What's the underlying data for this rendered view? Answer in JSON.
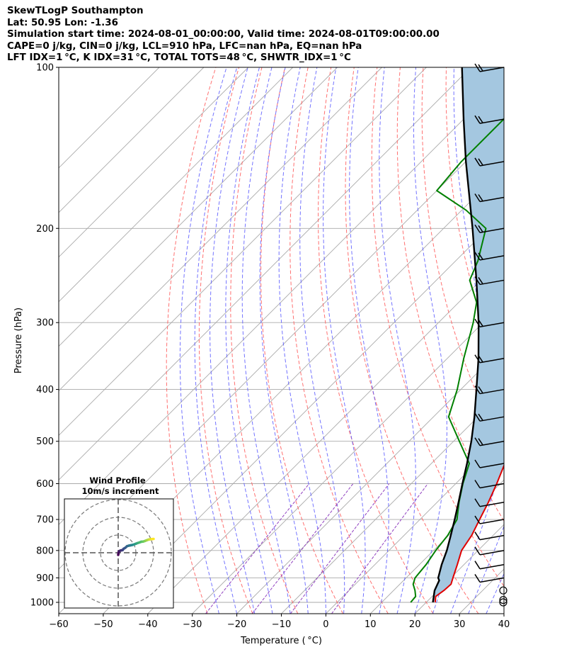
{
  "header": {
    "line1": "SkewTLogP Southampton",
    "line2": "Lat: 50.95   Lon: -1.36",
    "line3": "Simulation start time: 2024-08-01_00:00:00, Valid time: 2024-08-01T09:00:00.00",
    "line4": "CAPE=0 j/kg, CIN=0 j/kg, LCL=910 hPa, LFC=nan hPa, EQ=nan hPa",
    "line5": "LFT IDX=1 °C, K IDX=31 °C, TOTAL TOTS=48 °C, SHWTR_IDX=1 °C"
  },
  "chart_data": {
    "type": "line",
    "subtype": "skew-T log-P diagram",
    "xlabel": "Temperature ( °C)",
    "ylabel": "Pressure (hPa)",
    "xlim": [
      -60,
      40
    ],
    "ylim": [
      1050,
      100
    ],
    "yscale": "log",
    "xticks": [
      "−60",
      "−50",
      "−40",
      "−30",
      "−20",
      "−10",
      "0",
      "10",
      "20",
      "30",
      "40"
    ],
    "yticks": [
      "100",
      "200",
      "300",
      "400",
      "500",
      "600",
      "700",
      "800",
      "900",
      "1000"
    ],
    "ytick_values": [
      100,
      200,
      300,
      400,
      500,
      600,
      700,
      800,
      900,
      1000
    ],
    "grid": true,
    "colors": {
      "temperature": "#e00000",
      "dewpoint": "#008000",
      "parcel": "#000000",
      "fill": "#a4c7e0",
      "dry_adiabat": "#ff6060",
      "moist_adiabat": "#5a5aff",
      "mixing_ratio": "#9040c0",
      "isotherm": "#aaaaaa"
    },
    "series": [
      {
        "name": "Temperature",
        "points": [
          [
            1000,
            22
          ],
          [
            975,
            20.8
          ],
          [
            950,
            21.3
          ],
          [
            925,
            21.5
          ],
          [
            900,
            20.5
          ],
          [
            850,
            18.5
          ],
          [
            800,
            16.3
          ],
          [
            750,
            15.2
          ],
          [
            700,
            13.4
          ],
          [
            650,
            11.5
          ],
          [
            600,
            9.2
          ],
          [
            550,
            6.5
          ],
          [
            500,
            3.5
          ],
          [
            450,
            0.5
          ],
          [
            400,
            -3.5
          ],
          [
            350,
            -9
          ],
          [
            300,
            -14.8
          ],
          [
            250,
            -22.8
          ],
          [
            230,
            -24
          ],
          [
            200,
            -27.5
          ],
          [
            180,
            -29
          ],
          [
            150,
            -33.5
          ],
          [
            125,
            -38
          ],
          [
            100,
            -45
          ]
        ]
      },
      {
        "name": "Dewpoint",
        "points": [
          [
            1000,
            16.5
          ],
          [
            975,
            16.3
          ],
          [
            950,
            14.8
          ],
          [
            925,
            13
          ],
          [
            900,
            12
          ],
          [
            850,
            11.5
          ],
          [
            800,
            10.5
          ],
          [
            750,
            9.8
          ],
          [
            700,
            8.3
          ],
          [
            650,
            4.9
          ],
          [
            600,
            1.6
          ],
          [
            550,
            -1.5
          ],
          [
            500,
            -8.7
          ],
          [
            450,
            -16.6
          ],
          [
            400,
            -20.8
          ],
          [
            350,
            -26.3
          ],
          [
            300,
            -32.2
          ],
          [
            275,
            -36
          ],
          [
            250,
            -42.5
          ],
          [
            230,
            -45
          ],
          [
            200,
            -50.5
          ],
          [
            185,
            -59
          ],
          [
            170,
            -70
          ],
          [
            150,
            -71
          ],
          [
            125,
            -71
          ],
          [
            100,
            -74
          ]
        ]
      },
      {
        "name": "Parcel",
        "points": [
          [
            1000,
            21.5
          ],
          [
            950,
            19.2
          ],
          [
            910,
            18
          ],
          [
            900,
            17.2
          ],
          [
            850,
            15
          ],
          [
            800,
            13
          ],
          [
            750,
            10.5
          ],
          [
            700,
            7.8
          ],
          [
            650,
            4.8
          ],
          [
            600,
            1.5
          ],
          [
            550,
            -2
          ],
          [
            500,
            -6
          ],
          [
            450,
            -10.8
          ],
          [
            400,
            -16.5
          ],
          [
            350,
            -23
          ],
          [
            300,
            -31
          ],
          [
            250,
            -41
          ],
          [
            200,
            -53.5
          ],
          [
            150,
            -70
          ],
          [
            125,
            -80
          ],
          [
            100,
            -92
          ]
        ]
      }
    ],
    "wind_barbs": {
      "pressures": [
        1000,
        990,
        950,
        900,
        850,
        800,
        750,
        700,
        650,
        600,
        550,
        500,
        450,
        400,
        350,
        300,
        250,
        225,
        200,
        175,
        150,
        125,
        100
      ],
      "description": "wind barbs along the right edge"
    },
    "hodograph": {
      "title": "Wind Profile",
      "subtitle": "10m/s increment",
      "ring_increment_ms": 10,
      "rings": [
        10,
        20,
        30
      ],
      "trace_uv": [
        [
          0,
          -1.2
        ],
        [
          0.3,
          0.5
        ],
        [
          0.8,
          1.0
        ],
        [
          1.5,
          1.3
        ],
        [
          2.5,
          1.5
        ],
        [
          3,
          2.2
        ],
        [
          4,
          2.8
        ],
        [
          5,
          3.7
        ],
        [
          6,
          4.0
        ],
        [
          7,
          4.2
        ],
        [
          8,
          4.4
        ],
        [
          9,
          4.7
        ],
        [
          10,
          5.1
        ],
        [
          11,
          5.5
        ],
        [
          12,
          5.8
        ],
        [
          13,
          6.2
        ],
        [
          14,
          6.3
        ],
        [
          15,
          6.6
        ],
        [
          16,
          7.0
        ],
        [
          17,
          7.4
        ],
        [
          18,
          7.6
        ],
        [
          19,
          7.7
        ],
        [
          20,
          7.8
        ]
      ]
    }
  }
}
